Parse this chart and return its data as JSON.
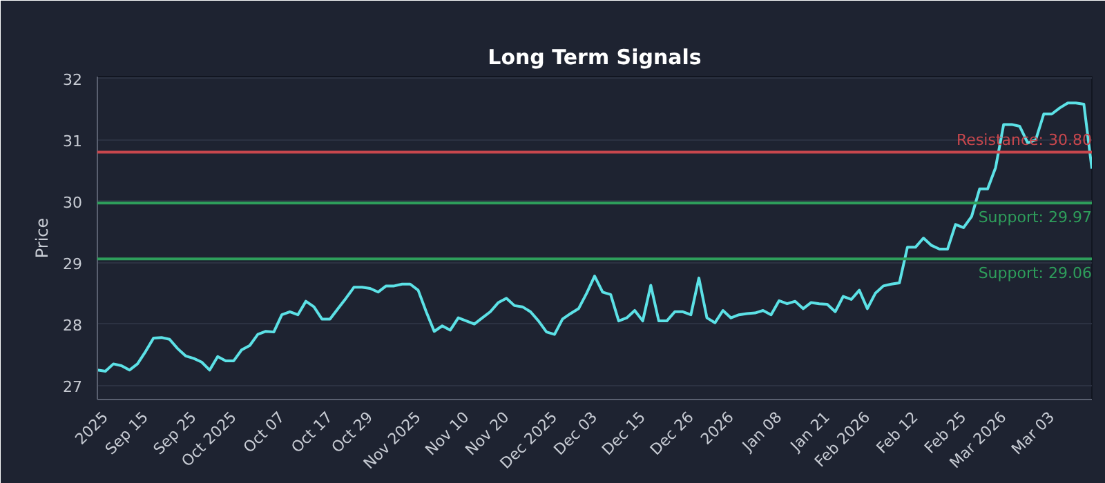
{
  "chart_data": {
    "type": "line",
    "title": "Long Term Signals",
    "ylabel": "Price",
    "categories": [
      null,
      "2025",
      null,
      null,
      null,
      null,
      "Sep 15",
      null,
      null,
      null,
      null,
      null,
      "Sep 25",
      null,
      null,
      null,
      null,
      "Oct 2025",
      null,
      null,
      null,
      null,
      null,
      "Oct 07",
      null,
      null,
      null,
      null,
      null,
      "Oct 17",
      null,
      null,
      null,
      null,
      "Oct 29",
      null,
      null,
      null,
      null,
      null,
      "Nov 2025",
      null,
      null,
      null,
      null,
      null,
      "Nov 10",
      null,
      null,
      null,
      null,
      "Nov 20",
      null,
      null,
      null,
      null,
      null,
      "Dec 2025",
      null,
      null,
      null,
      null,
      "Dec 03",
      null,
      null,
      null,
      null,
      null,
      "Dec 15",
      null,
      null,
      null,
      null,
      null,
      "Dec 26",
      null,
      null,
      null,
      null,
      "2026",
      null,
      null,
      null,
      null,
      null,
      "Jan 08",
      null,
      null,
      null,
      null,
      null,
      "Jan 21",
      null,
      null,
      null,
      null,
      "Feb 2026",
      null,
      null,
      null,
      null,
      null,
      "Feb 12",
      null,
      null,
      null,
      null,
      null,
      "Feb 25",
      null,
      null,
      null,
      null,
      "Mar 2026",
      null,
      null,
      null,
      null,
      null,
      "Mar 03",
      null,
      null,
      null,
      null,
      null
    ],
    "series": [
      {
        "color": "#5ce1e6",
        "values": [
          27.25,
          27.23,
          27.35,
          27.32,
          27.25,
          27.35,
          27.55,
          27.77,
          27.78,
          27.75,
          27.6,
          27.48,
          27.44,
          27.38,
          27.25,
          27.47,
          27.4,
          27.4,
          27.58,
          27.65,
          27.83,
          27.88,
          27.87,
          28.15,
          28.2,
          28.15,
          28.37,
          28.28,
          28.08,
          28.08,
          28.25,
          28.42,
          28.6,
          28.6,
          28.58,
          28.52,
          28.62,
          28.62,
          28.65,
          28.65,
          28.55,
          28.2,
          27.88,
          27.97,
          27.9,
          28.1,
          28.05,
          28.0,
          28.1,
          28.2,
          28.35,
          28.42,
          28.3,
          28.28,
          28.2,
          28.05,
          27.87,
          27.83,
          28.08,
          28.17,
          28.25,
          28.5,
          28.78,
          28.52,
          28.48,
          28.05,
          28.1,
          28.22,
          28.05,
          28.63,
          28.05,
          28.05,
          28.2,
          28.2,
          28.15,
          28.75,
          28.1,
          28.02,
          28.22,
          28.1,
          28.15,
          28.17,
          28.18,
          28.22,
          28.15,
          28.38,
          28.33,
          28.37,
          28.25,
          28.35,
          28.33,
          28.32,
          28.2,
          28.45,
          28.4,
          28.55,
          28.25,
          28.5,
          28.62,
          28.65,
          28.67,
          29.25,
          29.25,
          29.4,
          29.28,
          29.22,
          29.22,
          29.62,
          29.57,
          29.75,
          30.2,
          30.2,
          30.55,
          31.25,
          31.25,
          31.22,
          30.95,
          31.0,
          31.42,
          31.42,
          31.52,
          31.6,
          31.6,
          31.58,
          30.53
        ]
      }
    ],
    "ylim": [
      26.77,
      32.03
    ],
    "yticks": [
      27,
      28,
      29,
      30,
      31,
      32
    ],
    "grid": "y",
    "ref_lines": [
      {
        "axis": "y",
        "value": 30.8,
        "label": "Resistance: 30.80",
        "color": "#c8474d"
      },
      {
        "axis": "y",
        "value": 29.97,
        "label": "Support: 29.97",
        "color": "#2e9e5b"
      },
      {
        "axis": "y",
        "value": 29.06,
        "label": "Support: 29.06",
        "color": "#2e9e5b"
      }
    ]
  }
}
